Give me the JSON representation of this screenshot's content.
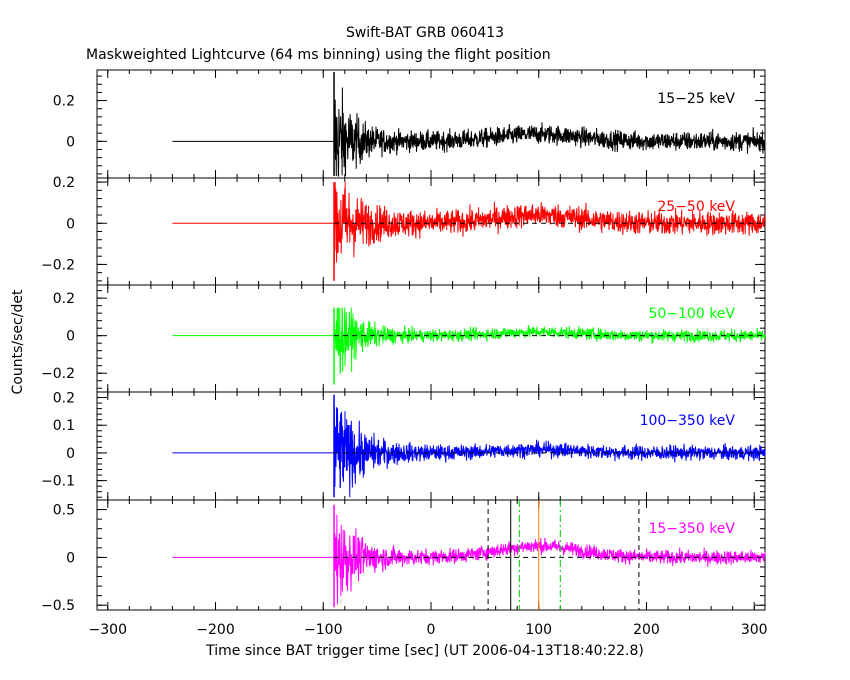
{
  "title": "Swift-BAT GRB 060413",
  "subtitle": "Maskweighted Lightcurve (64 ms binning) using the flight position",
  "ylabel": "Counts/sec/det",
  "xlabel": "Time since BAT trigger time [sec] (UT 2006-04-13T18:40:22.8)",
  "chart_data": {
    "type": "line",
    "title": "Swift-BAT GRB 060413",
    "xlabel": "Time since BAT trigger time [sec] (UT 2006-04-13T18:40:22.8)",
    "ylabel": "Counts/sec/det",
    "xlim": [
      -310,
      310
    ],
    "x_ticks": [
      -300,
      -200,
      -100,
      0,
      100,
      200,
      300
    ],
    "data_start": -240,
    "burst_onset": -90,
    "panels": [
      {
        "name": "15-25 keV",
        "label": "15−25 keV",
        "color": "#000000",
        "ylim": [
          -0.18,
          0.35
        ],
        "ticks": [
          0,
          0.2
        ],
        "tick_labels": [
          "0",
          "0.2"
        ],
        "zero_dashed": false,
        "spike_max": 0.34,
        "spike_min": -0.17,
        "noise_amp": 0.045,
        "hump_amp": 0.035,
        "decay": 15
      },
      {
        "name": "25-50 keV",
        "label": "25−50 keV",
        "color": "#ff0000",
        "ylim": [
          -0.3,
          0.22
        ],
        "ticks": [
          -0.2,
          0,
          0.2
        ],
        "tick_labels": [
          "−0.2",
          "0",
          "0.2"
        ],
        "zero_dashed": true,
        "spike_max": 0.2,
        "spike_min": -0.28,
        "noise_amp": 0.055,
        "hump_amp": 0.04,
        "decay": 20
      },
      {
        "name": "50-100 keV",
        "label": "50−100 keV",
        "color": "#00ff00",
        "ylim": [
          -0.3,
          0.27
        ],
        "ticks": [
          -0.2,
          0,
          0.2
        ],
        "tick_labels": [
          "−0.2",
          "0",
          "0.2"
        ],
        "zero_dashed": true,
        "spike_max": 0.15,
        "spike_min": -0.26,
        "noise_amp": 0.03,
        "hump_amp": 0.02,
        "decay": 18
      },
      {
        "name": "100-350 keV",
        "label": "100−350 keV",
        "color": "#0000ff",
        "ylim": [
          -0.17,
          0.22
        ],
        "ticks": [
          -0.1,
          0,
          0.1,
          0.2
        ],
        "tick_labels": [
          "−0.1",
          "0",
          "0.1",
          "0.2"
        ],
        "zero_dashed": true,
        "spike_max": 0.21,
        "spike_min": -0.16,
        "noise_amp": 0.025,
        "hump_amp": 0.012,
        "decay": 22
      },
      {
        "name": "15-350 keV",
        "label": "15−350 keV",
        "color": "#ff00ff",
        "ylim": [
          -0.55,
          0.6
        ],
        "ticks": [
          -0.5,
          0,
          0.5
        ],
        "tick_labels": [
          "−0.5",
          "0",
          "0.5"
        ],
        "zero_dashed": true,
        "spike_max": 0.55,
        "spike_min": -0.52,
        "noise_amp": 0.07,
        "hump_amp": 0.12,
        "decay": 20
      }
    ],
    "markers": [
      {
        "x": 53,
        "color": "#000000",
        "style": "dashed"
      },
      {
        "x": 74,
        "color": "#000000",
        "style": "solid"
      },
      {
        "x": 82,
        "color": "#00cc00",
        "style": "dashdot"
      },
      {
        "x": 100,
        "color": "#ff8000",
        "style": "solid"
      },
      {
        "x": 120,
        "color": "#00cc00",
        "style": "dashdot"
      },
      {
        "x": 193,
        "color": "#000000",
        "style": "dashed"
      }
    ]
  }
}
